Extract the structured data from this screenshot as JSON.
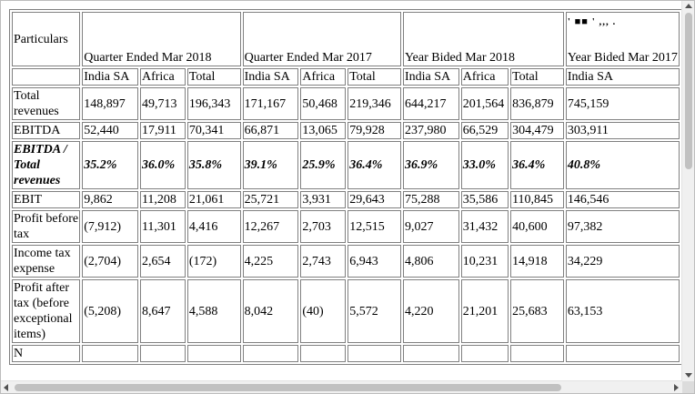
{
  "table": {
    "particulars_header": "Particulars",
    "groups": [
      "Quarter Ended Mar 2018",
      "Quarter Ended Mar 2017",
      "Year Bided Mar 2018",
      "Year Bided Mar 2017"
    ],
    "overflow_glyphs": "' ■■ ' ,,, .",
    "subheaders": [
      "India SA",
      "Africa",
      "Total",
      "India SA",
      "Africa",
      "Total",
      "India SA",
      "Africa",
      "Total",
      "India SA"
    ],
    "rows": [
      {
        "label": "Total revenues",
        "values": [
          "148,897",
          "49,713",
          "196,343",
          "171,167",
          "50,468",
          "219,346",
          "644,217",
          "201,564",
          "836,879",
          "745,159"
        ]
      },
      {
        "label": "EBITDA",
        "values": [
          "52,440",
          "17,911",
          "70,341",
          "66,871",
          "13,065",
          "79,928",
          "237,980",
          "66,529",
          "304,479",
          "303,911"
        ]
      },
      {
        "label": "EBITDA / Total revenues",
        "values": [
          "35.2%",
          "36.0%",
          "35.8%",
          "39.1%",
          "25.9%",
          "36.4%",
          "36.9%",
          "33.0%",
          "36.4%",
          "40.8%"
        ],
        "bold": true
      },
      {
        "label": "EBIT",
        "values": [
          "9,862",
          "11,208",
          "21,061",
          "25,721",
          "3,931",
          "29,643",
          "75,288",
          "35,586",
          "110,845",
          "146,546"
        ]
      },
      {
        "label": "Profit before tax",
        "values": [
          "(7,912)",
          "11,301",
          "4,416",
          "12,267",
          "2,703",
          "12,515",
          "9,027",
          "31,432",
          "40,600",
          "97,382"
        ]
      },
      {
        "label": "Income tax expense",
        "values": [
          "(2,704)",
          "2,654",
          "(172)",
          "4,225",
          "2,743",
          "6,943",
          "4,806",
          "10,231",
          "14,918",
          "34,229"
        ]
      },
      {
        "label": "Profit after tax (before exceptional items)",
        "values": [
          "(5,208)",
          "8,647",
          "4,588",
          "8,042",
          "(40)",
          "5,572",
          "4,220",
          "21,201",
          "25,683",
          "63,153"
        ]
      },
      {
        "label": "N",
        "values": [
          "",
          "",
          "",
          "",
          "",
          "",
          "",
          "",
          "",
          ""
        ]
      }
    ]
  }
}
